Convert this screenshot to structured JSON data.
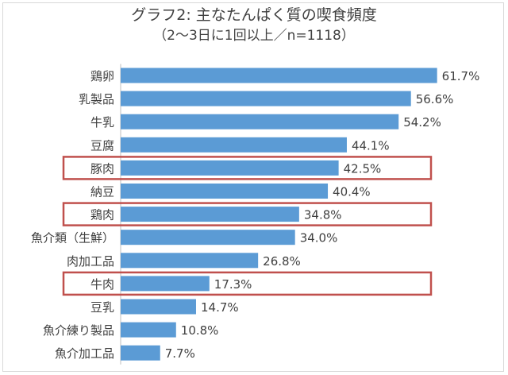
{
  "chart_data": {
    "type": "bar",
    "orientation": "horizontal",
    "title": "グラフ2: 主なたんぱく質の喫食頻度",
    "subtitle": "（2～3日に1回以上／n=1118）",
    "categories": [
      "鶏卵",
      "乳製品",
      "牛乳",
      "豆腐",
      "豚肉",
      "納豆",
      "鶏肉",
      "魚介類（生鮮）",
      "肉加工品",
      "牛肉",
      "豆乳",
      "魚介練り製品",
      "魚介加工品"
    ],
    "values": [
      61.7,
      56.6,
      54.2,
      44.1,
      42.5,
      40.4,
      34.8,
      34.0,
      26.8,
      17.3,
      14.7,
      10.8,
      7.7
    ],
    "value_labels": [
      "61.7%",
      "56.6%",
      "54.2%",
      "44.1%",
      "42.5%",
      "40.4%",
      "34.8%",
      "34.0%",
      "26.8%",
      "17.3%",
      "14.7%",
      "10.8%",
      "7.7%"
    ],
    "highlighted": [
      "豚肉",
      "鶏肉",
      "牛肉"
    ],
    "xlim": [
      0,
      65
    ],
    "grid": false,
    "legend": "none",
    "bar_color": "#5b9bd5",
    "highlight_color": "#c0504d"
  }
}
